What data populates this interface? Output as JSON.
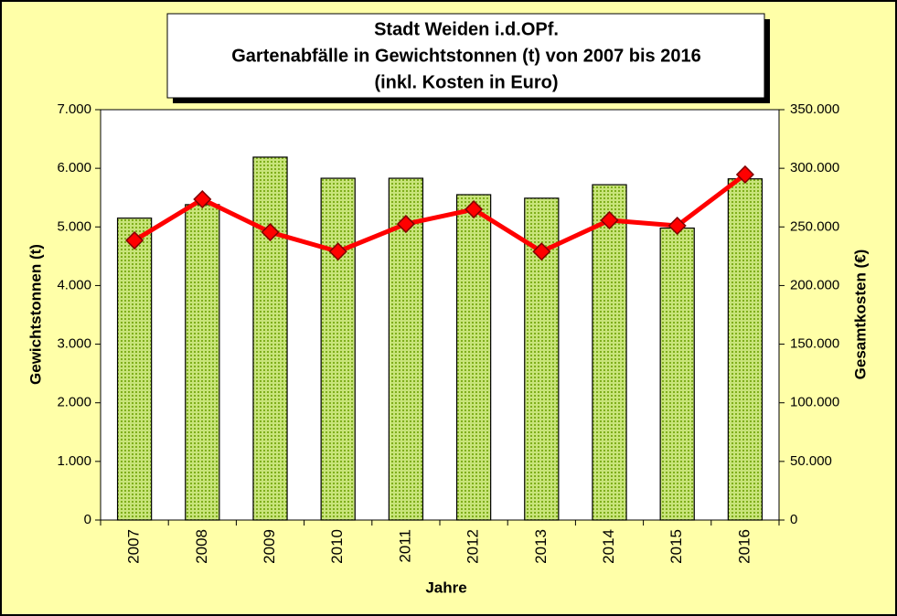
{
  "chart_data": {
    "type": "bar-line",
    "title": [
      "Stadt Weiden i.d.OPf.",
      "Gartenabfälle in Gewichtstonnen (t) von 2007 bis 2016",
      "(inkl. Kosten in Euro)"
    ],
    "x_label": "Jahre",
    "y_label": "Gewichtstonnen (t)",
    "y2_label": "Gesamtkosten (€)",
    "categories": [
      "2007",
      "2008",
      "2009",
      "2010",
      "2011",
      "2012",
      "2013",
      "2014",
      "2015",
      "2016"
    ],
    "series": [
      {
        "type": "bar",
        "color": "#a6d03c",
        "values": [
          5150,
          5380,
          6190,
          5830,
          5830,
          5550,
          5490,
          5720,
          4980,
          5820
        ]
      },
      {
        "type": "line",
        "axis": "y2",
        "color": "#ff0000",
        "values": [
          238500,
          273600,
          245500,
          229000,
          252500,
          265000,
          229000,
          255700,
          251000,
          294700
        ]
      }
    ],
    "ylim": [
      0,
      7000
    ],
    "yticks": [
      0,
      {
        "value": 1000,
        "label": "1.000"
      },
      {
        "value": 2000,
        "label": "2.000"
      },
      {
        "value": 3000,
        "label": "3.000"
      },
      {
        "value": 4000,
        "label": "4.000"
      },
      {
        "value": 5000,
        "label": "5.000"
      },
      {
        "value": 6000,
        "label": "6.000"
      },
      {
        "value": 7000,
        "label": "7.000"
      }
    ],
    "y2lim": [
      0,
      350000
    ],
    "y2ticks": [
      0,
      {
        "value": 50000,
        "label": "50.000"
      },
      {
        "value": 100000,
        "label": "100.000"
      },
      {
        "value": 150000,
        "label": "150.000"
      },
      {
        "value": 200000,
        "label": "200.000"
      },
      {
        "value": 250000,
        "label": "250.000"
      },
      {
        "value": 300000,
        "label": "300.000"
      },
      {
        "value": 350000,
        "label": "350.000"
      }
    ],
    "grid": false
  }
}
